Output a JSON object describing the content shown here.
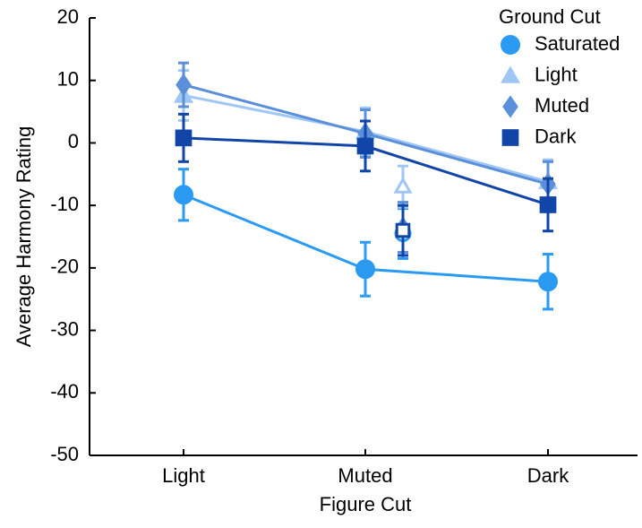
{
  "chart_data": {
    "type": "line",
    "x_label": "Figure Cut",
    "y_label": "Average Harmony Rating",
    "legend_title": "Ground Cut",
    "legend": "upper right",
    "categories": [
      "Light",
      "Muted",
      "Dark"
    ],
    "ylim": [
      -50,
      20
    ],
    "yticks": [
      -50,
      -40,
      -30,
      -20,
      -10,
      0,
      10,
      20
    ],
    "series": [
      {
        "name": "Saturated",
        "marker": "circle",
        "color": "#2b9af3",
        "values": [
          -8.3,
          -20.2,
          -22.2
        ],
        "errors": [
          4.1,
          4.3,
          4.4
        ],
        "hollow_value": -14.5,
        "hollow_error": 4
      },
      {
        "name": "Light",
        "marker": "triangle",
        "color": "#9fc6f5",
        "values": [
          7.6,
          1.8,
          -6.2
        ],
        "errors": [
          4,
          3.8,
          3.5
        ],
        "hollow_value": -7.0,
        "hollow_error": 3.3
      },
      {
        "name": "Muted",
        "marker": "diamond",
        "color": "#5b8fd9",
        "values": [
          9.3,
          1.5,
          -6.6
        ],
        "errors": [
          3.5,
          3.8,
          3.6
        ],
        "hollow_value": -13.5,
        "hollow_error": 4
      },
      {
        "name": "Dark",
        "marker": "square",
        "color": "#1245a8",
        "values": [
          0.8,
          -0.5,
          -9.9
        ],
        "errors": [
          3.8,
          4,
          4.2
        ],
        "hollow_value": -14.0,
        "hollow_error": 4
      }
    ]
  }
}
